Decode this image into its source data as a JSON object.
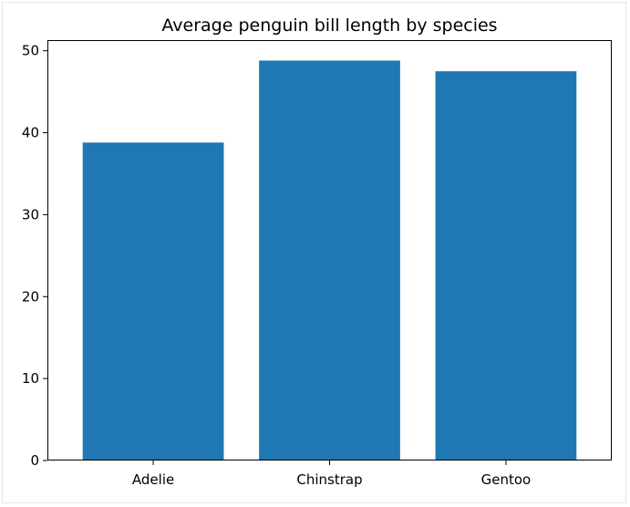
{
  "chart_data": {
    "type": "bar",
    "title": "Average penguin bill length by species",
    "xlabel": "",
    "ylabel": "",
    "categories": [
      "Adelie",
      "Chinstrap",
      "Gentoo"
    ],
    "values": [
      38.8,
      48.8,
      47.5
    ],
    "ylim": [
      0,
      51.3
    ],
    "yticks": [
      0,
      10,
      20,
      30,
      40,
      50
    ],
    "grid": false,
    "bar_color": "#1f77b4"
  }
}
